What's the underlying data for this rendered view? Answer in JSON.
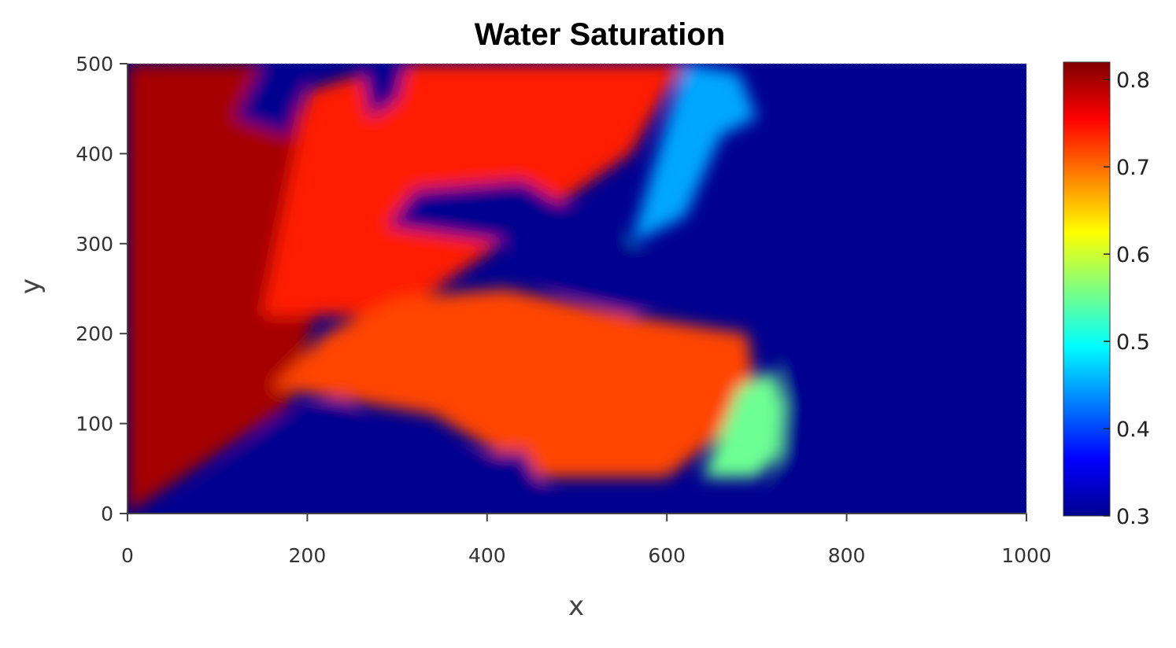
{
  "chart_data": {
    "type": "heatmap",
    "title": "Water Saturation",
    "xlabel": "x",
    "ylabel": "y",
    "xlim": [
      0,
      1000
    ],
    "ylim": [
      0,
      500
    ],
    "x_ticks": [
      "0",
      "200",
      "400",
      "600",
      "800",
      "1000"
    ],
    "y_ticks": [
      "0",
      "100",
      "200",
      "300",
      "400",
      "500"
    ],
    "colorbar": {
      "range": [
        0.3,
        0.82
      ],
      "ticks": [
        "0.3",
        "0.4",
        "0.5",
        "0.6",
        "0.7",
        "0.8"
      ],
      "colormap": "jet"
    },
    "regions": [
      {
        "name": "left-high-zone",
        "x": [
          0,
          180,
          230,
          180,
          0
        ],
        "y": [
          0,
          120,
          300,
          500,
          500
        ],
        "value": 0.8
      },
      {
        "name": "upper-flow-tongue",
        "x": [
          150,
          300,
          430,
          560,
          600,
          620,
          560,
          420,
          300,
          200
        ],
        "y": [
          220,
          220,
          310,
          400,
          470,
          500,
          500,
          500,
          500,
          470
        ],
        "value": 0.74
      },
      {
        "name": "upper-front-tip",
        "x": [
          560,
          620,
          660,
          700,
          680,
          620
        ],
        "y": [
          300,
          330,
          420,
          440,
          490,
          500
        ],
        "value": 0.45
      },
      {
        "name": "lower-flow-tongue",
        "x": [
          160,
          340,
          460,
          600,
          700,
          690,
          560,
          420,
          300,
          220
        ],
        "y": [
          140,
          110,
          40,
          40,
          120,
          200,
          220,
          250,
          240,
          200
        ],
        "value": 0.72
      },
      {
        "name": "lower-front-tip",
        "x": [
          640,
          700,
          740,
          720,
          680
        ],
        "y": [
          40,
          40,
          80,
          160,
          140
        ],
        "value": 0.55
      },
      {
        "name": "central-low-channel",
        "x": [
          290,
          430,
          480,
          560,
          600,
          560,
          440,
          320
        ],
        "y": [
          320,
          300,
          250,
          220,
          260,
          300,
          370,
          360
        ],
        "value": 0.3
      },
      {
        "name": "bottom-low-pocket",
        "x": [
          60,
          160,
          240,
          300,
          240,
          120
        ],
        "y": [
          0,
          100,
          130,
          30,
          0,
          0
        ],
        "value": 0.3
      },
      {
        "name": "bottom-mid-pocket",
        "x": [
          300,
          360,
          440,
          480,
          420,
          330
        ],
        "y": [
          0,
          60,
          70,
          0,
          0,
          0
        ],
        "value": 0.3
      },
      {
        "name": "top-low-pocket-a",
        "x": [
          120,
          180,
          200,
          150
        ],
        "y": [
          440,
          420,
          500,
          500
        ],
        "value": 0.3
      },
      {
        "name": "top-low-pocket-b",
        "x": [
          270,
          300,
          310,
          260
        ],
        "y": [
          440,
          460,
          500,
          500
        ],
        "value": 0.3
      },
      {
        "name": "right-low-zone",
        "x": [
          720,
          1000,
          1000,
          760
        ],
        "y": [
          0,
          0,
          500,
          500
        ],
        "value": 0.3
      }
    ],
    "background_value": 0.3
  }
}
